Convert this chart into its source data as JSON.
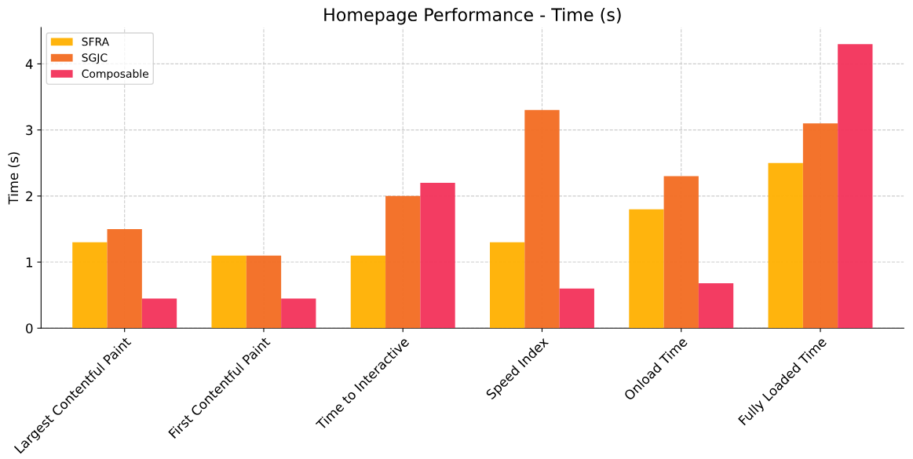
{
  "chart_data": {
    "type": "bar",
    "title": "Homepage Performance - Time (s)",
    "ylabel": "Time (s)",
    "categories": [
      "Largest Contentful Paint",
      "First Contentful Paint",
      "Time to Interactive",
      "Speed Index",
      "Onload Time",
      "Fully Loaded Time"
    ],
    "series": [
      {
        "name": "SFRA",
        "color": "#ffb000",
        "values": [
          1.3,
          1.1,
          1.1,
          1.3,
          1.8,
          2.5
        ]
      },
      {
        "name": "SGJC",
        "color": "#f26b21",
        "values": [
          1.5,
          1.1,
          2.0,
          3.3,
          2.3,
          3.1
        ]
      },
      {
        "name": "Composable",
        "color": "#f2325a",
        "values": [
          0.45,
          0.45,
          2.2,
          0.6,
          0.68,
          4.3
        ]
      }
    ],
    "ylim": [
      0,
      4.55
    ],
    "yticks": [
      0,
      1,
      2,
      3,
      4
    ],
    "grid": true,
    "legend": "top left"
  }
}
